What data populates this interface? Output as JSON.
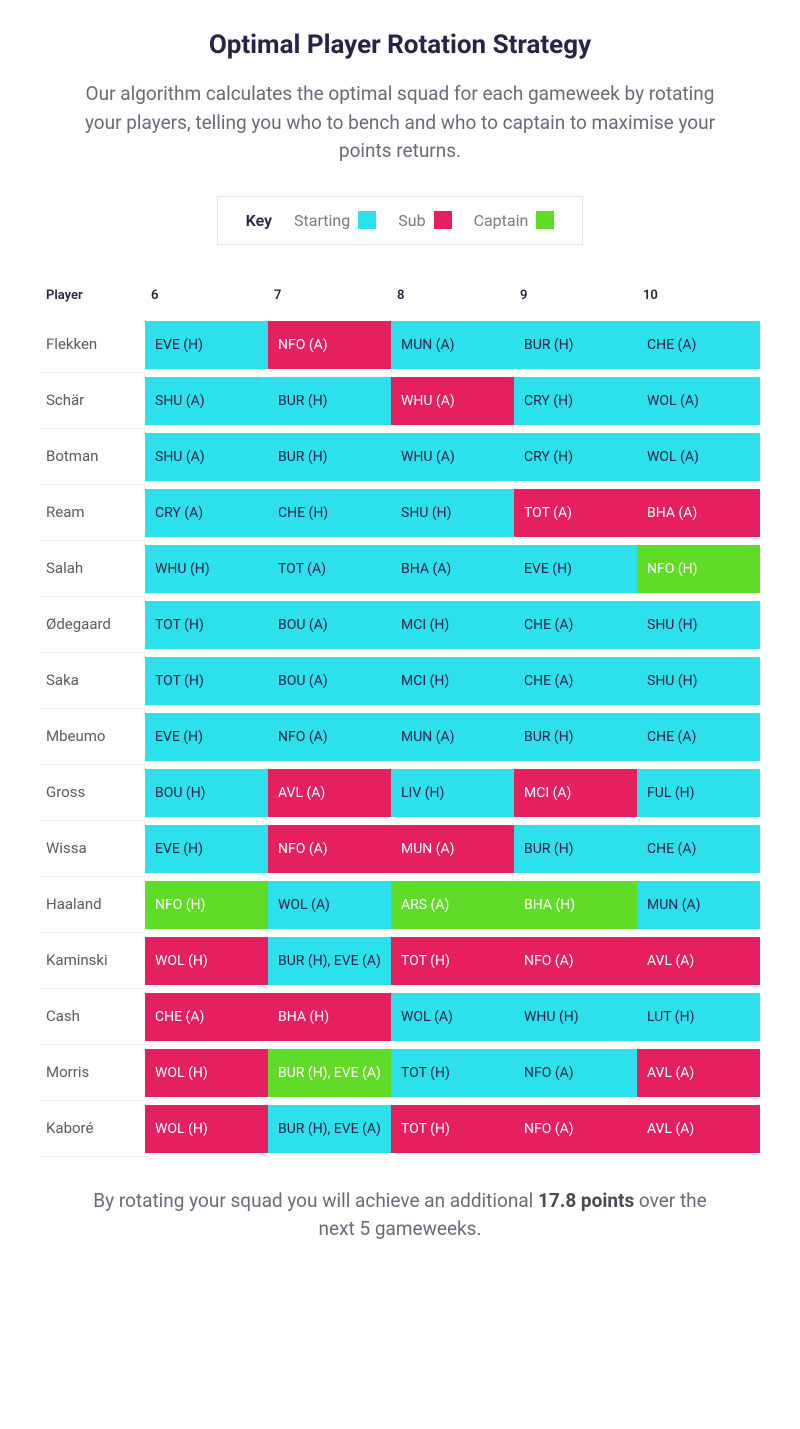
{
  "title": "Optimal Player Rotation Strategy",
  "intro": "Our algorithm calculates the optimal squad for each gameweek by rotating your players, telling you who to bench and who to captain to maximise your points returns.",
  "colors": {
    "starting": "#2ce1ec",
    "sub": "#e6205f",
    "captain": "#5fdb28",
    "text_dark": "#2b2345",
    "text_muted": "#6a6a78"
  },
  "legend": {
    "title": "Key",
    "items": [
      {
        "label": "Starting",
        "role": "starting"
      },
      {
        "label": "Sub",
        "role": "sub"
      },
      {
        "label": "Captain",
        "role": "captain"
      }
    ]
  },
  "table": {
    "player_header": "Player",
    "gameweeks": [
      "6",
      "7",
      "8",
      "9",
      "10"
    ],
    "rows": [
      {
        "player": "Flekken",
        "cells": [
          {
            "t": "EVE (H)",
            "r": "starting"
          },
          {
            "t": "NFO (A)",
            "r": "sub"
          },
          {
            "t": "MUN (A)",
            "r": "starting"
          },
          {
            "t": "BUR (H)",
            "r": "starting"
          },
          {
            "t": "CHE (A)",
            "r": "starting"
          }
        ]
      },
      {
        "player": "Schär",
        "cells": [
          {
            "t": "SHU (A)",
            "r": "starting"
          },
          {
            "t": "BUR (H)",
            "r": "starting"
          },
          {
            "t": "WHU (A)",
            "r": "sub"
          },
          {
            "t": "CRY (H)",
            "r": "starting"
          },
          {
            "t": "WOL (A)",
            "r": "starting"
          }
        ]
      },
      {
        "player": "Botman",
        "cells": [
          {
            "t": "SHU (A)",
            "r": "starting"
          },
          {
            "t": "BUR (H)",
            "r": "starting"
          },
          {
            "t": "WHU (A)",
            "r": "starting"
          },
          {
            "t": "CRY (H)",
            "r": "starting"
          },
          {
            "t": "WOL (A)",
            "r": "starting"
          }
        ]
      },
      {
        "player": "Ream",
        "cells": [
          {
            "t": "CRY (A)",
            "r": "starting"
          },
          {
            "t": "CHE (H)",
            "r": "starting"
          },
          {
            "t": "SHU (H)",
            "r": "starting"
          },
          {
            "t": "TOT (A)",
            "r": "sub"
          },
          {
            "t": "BHA (A)",
            "r": "sub"
          }
        ]
      },
      {
        "player": "Salah",
        "cells": [
          {
            "t": "WHU (H)",
            "r": "starting"
          },
          {
            "t": "TOT (A)",
            "r": "starting"
          },
          {
            "t": "BHA (A)",
            "r": "starting"
          },
          {
            "t": "EVE (H)",
            "r": "starting"
          },
          {
            "t": "NFO (H)",
            "r": "captain"
          }
        ]
      },
      {
        "player": "Ødegaard",
        "cells": [
          {
            "t": "TOT (H)",
            "r": "starting"
          },
          {
            "t": "BOU (A)",
            "r": "starting"
          },
          {
            "t": "MCI (H)",
            "r": "starting"
          },
          {
            "t": "CHE (A)",
            "r": "starting"
          },
          {
            "t": "SHU (H)",
            "r": "starting"
          }
        ]
      },
      {
        "player": "Saka",
        "cells": [
          {
            "t": "TOT (H)",
            "r": "starting"
          },
          {
            "t": "BOU (A)",
            "r": "starting"
          },
          {
            "t": "MCI (H)",
            "r": "starting"
          },
          {
            "t": "CHE (A)",
            "r": "starting"
          },
          {
            "t": "SHU (H)",
            "r": "starting"
          }
        ]
      },
      {
        "player": "Mbeumo",
        "cells": [
          {
            "t": "EVE (H)",
            "r": "starting"
          },
          {
            "t": "NFO (A)",
            "r": "starting"
          },
          {
            "t": "MUN (A)",
            "r": "starting"
          },
          {
            "t": "BUR (H)",
            "r": "starting"
          },
          {
            "t": "CHE (A)",
            "r": "starting"
          }
        ]
      },
      {
        "player": "Gross",
        "cells": [
          {
            "t": "BOU (H)",
            "r": "starting"
          },
          {
            "t": "AVL (A)",
            "r": "sub"
          },
          {
            "t": "LIV (H)",
            "r": "starting"
          },
          {
            "t": "MCI (A)",
            "r": "sub"
          },
          {
            "t": "FUL (H)",
            "r": "starting"
          }
        ]
      },
      {
        "player": "Wissa",
        "cells": [
          {
            "t": "EVE (H)",
            "r": "starting"
          },
          {
            "t": "NFO (A)",
            "r": "sub"
          },
          {
            "t": "MUN (A)",
            "r": "sub"
          },
          {
            "t": "BUR (H)",
            "r": "starting"
          },
          {
            "t": "CHE (A)",
            "r": "starting"
          }
        ]
      },
      {
        "player": "Haaland",
        "cells": [
          {
            "t": "NFO (H)",
            "r": "captain"
          },
          {
            "t": "WOL (A)",
            "r": "starting"
          },
          {
            "t": "ARS (A)",
            "r": "captain"
          },
          {
            "t": "BHA (H)",
            "r": "captain"
          },
          {
            "t": "MUN (A)",
            "r": "starting"
          }
        ]
      },
      {
        "player": "Kaminski",
        "cells": [
          {
            "t": "WOL (H)",
            "r": "sub"
          },
          {
            "t": "BUR (H), EVE (A)",
            "r": "starting"
          },
          {
            "t": "TOT (H)",
            "r": "sub"
          },
          {
            "t": "NFO (A)",
            "r": "sub"
          },
          {
            "t": "AVL (A)",
            "r": "sub"
          }
        ]
      },
      {
        "player": "Cash",
        "cells": [
          {
            "t": "CHE (A)",
            "r": "sub"
          },
          {
            "t": "BHA (H)",
            "r": "sub"
          },
          {
            "t": "WOL (A)",
            "r": "starting"
          },
          {
            "t": "WHU (H)",
            "r": "starting"
          },
          {
            "t": "LUT (H)",
            "r": "starting"
          }
        ]
      },
      {
        "player": "Morris",
        "cells": [
          {
            "t": "WOL (H)",
            "r": "sub"
          },
          {
            "t": "BUR (H), EVE (A)",
            "r": "captain"
          },
          {
            "t": "TOT (H)",
            "r": "starting"
          },
          {
            "t": "NFO (A)",
            "r": "starting"
          },
          {
            "t": "AVL (A)",
            "r": "sub"
          }
        ]
      },
      {
        "player": "Kaboré",
        "cells": [
          {
            "t": "WOL (H)",
            "r": "sub"
          },
          {
            "t": "BUR (H), EVE (A)",
            "r": "starting"
          },
          {
            "t": "TOT (H)",
            "r": "sub"
          },
          {
            "t": "NFO (A)",
            "r": "sub"
          },
          {
            "t": "AVL (A)",
            "r": "sub"
          }
        ]
      }
    ]
  },
  "footer": {
    "pre": "By rotating your squad you will achieve an additional ",
    "bold": "17.8 points",
    "post": " over the next 5 gameweeks."
  }
}
